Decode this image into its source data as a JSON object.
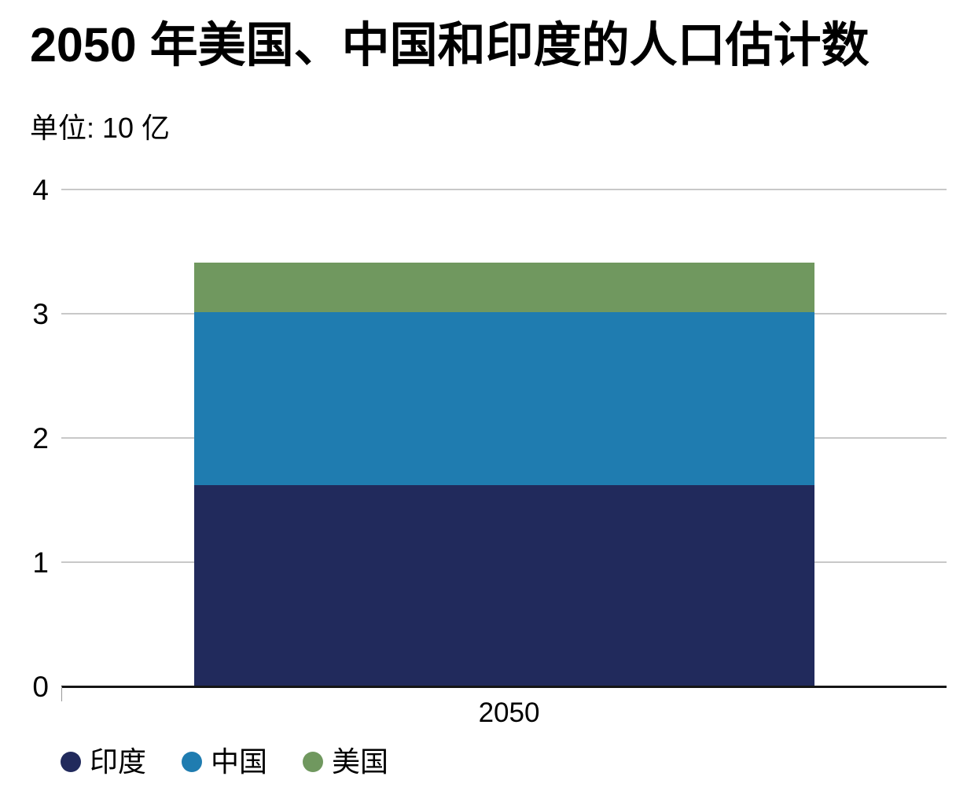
{
  "chart_data": {
    "type": "bar",
    "stacked": true,
    "title": "2050 年美国、中国和印度的人口估计数",
    "unit_label": "单位: 10 亿",
    "categories": [
      "2050"
    ],
    "series": [
      {
        "id": "india",
        "name": "印度",
        "values": [
          1.62
        ],
        "color": "#212a5c"
      },
      {
        "id": "china",
        "name": "中国",
        "values": [
          1.39
        ],
        "color": "#1f7cb0"
      },
      {
        "id": "usa",
        "name": "美国",
        "values": [
          0.4
        ],
        "color": "#70985f"
      }
    ],
    "stack_totals": [
      3.41
    ],
    "xlabel": "",
    "ylabel": "单位: 10 亿",
    "ylim": [
      0,
      4
    ],
    "yticks": [
      0,
      1,
      2,
      3,
      4
    ],
    "grid": true,
    "legend_position": "bottom-left",
    "colors": {
      "gridline": "#c8c8c8",
      "baseline": "#151515",
      "axis_tick": "#999999",
      "text": "#000000",
      "background": "#ffffff"
    }
  }
}
